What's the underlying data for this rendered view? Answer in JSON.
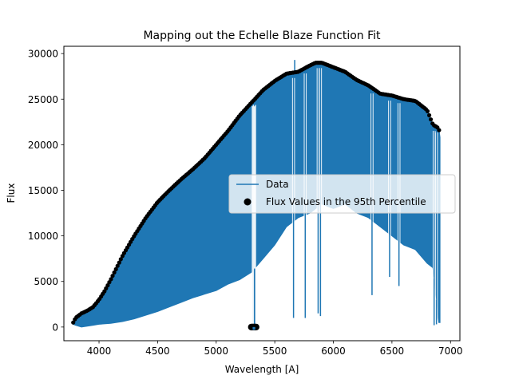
{
  "chart_data": {
    "type": "line",
    "title": "Mapping out the Echelle Blaze Function Fit",
    "xlabel": "Wavelength [A]",
    "ylabel": "Flux",
    "xlim": [
      3700,
      7080
    ],
    "ylim": [
      -1500,
      30800
    ],
    "xticks": [
      4000,
      4500,
      5000,
      5500,
      6000,
      6500,
      7000
    ],
    "xtick_labels": [
      "4000",
      "4500",
      "5000",
      "5500",
      "6000",
      "6500",
      "7000"
    ],
    "yticks": [
      0,
      5000,
      10000,
      15000,
      20000,
      25000,
      30000
    ],
    "ytick_labels": [
      "0",
      "5000",
      "10000",
      "15000",
      "20000",
      "25000",
      "30000"
    ],
    "grid": false,
    "legend": {
      "position": "center-right"
    },
    "series": [
      {
        "name": "Data",
        "kind": "line",
        "color": "#1f77b4",
        "upper_envelope": {
          "x": [
            3780,
            3800,
            3850,
            3900,
            3950,
            4000,
            4050,
            4100,
            4200,
            4300,
            4400,
            4500,
            4600,
            4700,
            4800,
            4900,
            5000,
            5100,
            5200,
            5300,
            5330,
            5400,
            5500,
            5600,
            5700,
            5800,
            5850,
            5900,
            6000,
            6100,
            6200,
            6300,
            6400,
            6500,
            6600,
            6700,
            6800,
            6850,
            6900,
            6910
          ],
          "y": [
            500,
            1000,
            1500,
            1800,
            2200,
            3000,
            4000,
            5200,
            7800,
            10000,
            12000,
            13700,
            15000,
            16200,
            17300,
            18500,
            20000,
            21500,
            23200,
            24600,
            25000,
            26000,
            27000,
            27800,
            28000,
            28700,
            29000,
            29000,
            28500,
            28000,
            27100,
            26500,
            25600,
            25400,
            25000,
            24800,
            23800,
            22200,
            21800,
            20800
          ]
        },
        "lower_envelope": {
          "x": [
            3780,
            3800,
            3850,
            3900,
            3950,
            4000,
            4100,
            4200,
            4300,
            4400,
            4500,
            4600,
            4700,
            4800,
            4900,
            5000,
            5100,
            5200,
            5300,
            5400,
            5500,
            5600,
            5700,
            5800,
            5900,
            6000,
            6100,
            6200,
            6300,
            6400,
            6500,
            6600,
            6700,
            6800,
            6850,
            6880,
            6900,
            6910
          ],
          "y": [
            300,
            200,
            0,
            100,
            200,
            300,
            400,
            600,
            900,
            1300,
            1700,
            2200,
            2700,
            3200,
            3600,
            4000,
            4700,
            5200,
            6000,
            7500,
            9000,
            11000,
            12000,
            12500,
            13500,
            13000,
            13500,
            12500,
            12000,
            11000,
            10000,
            9000,
            8500,
            7000,
            6500,
            3000,
            500,
            500
          ]
        },
        "absorption_lines": [
          {
            "x": 5316,
            "y": 0
          },
          {
            "x": 5322,
            "y": 0
          },
          {
            "x": 5328,
            "y": 0
          },
          {
            "x": 5660,
            "y": 1000
          },
          {
            "x": 5760,
            "y": 1000
          },
          {
            "x": 5870,
            "y": 1500
          },
          {
            "x": 5890,
            "y": 1200
          },
          {
            "x": 6330,
            "y": 3500
          },
          {
            "x": 6480,
            "y": 5500
          },
          {
            "x": 6560,
            "y": 4500
          },
          {
            "x": 6860,
            "y": 200
          },
          {
            "x": 6880,
            "y": 300
          }
        ],
        "emission_spike": {
          "x": 5670,
          "y": 29300
        }
      },
      {
        "name": "Flux Values in the 95th Percentile",
        "kind": "scatter",
        "color": "#000000",
        "cluster": {
          "x": [
            5300,
            5340
          ],
          "y": 0
        }
      }
    ]
  }
}
